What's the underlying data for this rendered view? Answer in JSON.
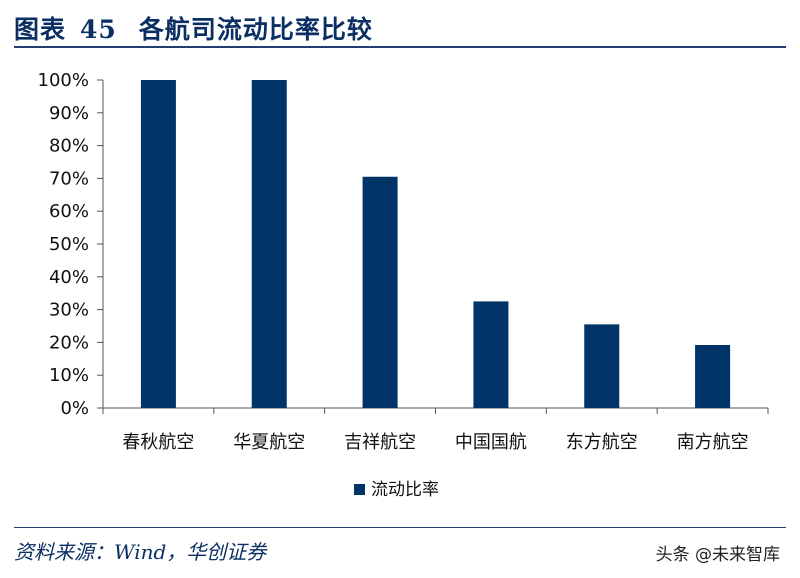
{
  "header": {
    "figure_label": "图表",
    "figure_number": "45",
    "title": "各航司流动比率比较"
  },
  "chart_data": {
    "type": "bar",
    "categories": [
      "春秋航空",
      "华夏航空",
      "吉祥航空",
      "中国国航",
      "东方航空",
      "南方航空"
    ],
    "series": [
      {
        "name": "流动比率",
        "values": [
          100,
          100,
          70.5,
          32.5,
          25.5,
          19.2
        ]
      }
    ],
    "ylim": [
      0,
      100
    ],
    "yticks": [
      "0%",
      "10%",
      "20%",
      "30%",
      "40%",
      "50%",
      "60%",
      "70%",
      "80%",
      "90%",
      "100%"
    ],
    "grid": false,
    "legend_position": "bottom",
    "bar_color": "#003366"
  },
  "footer": {
    "source": "资料来源：Wind，华创证券",
    "watermark": "头条 @未来智库"
  }
}
